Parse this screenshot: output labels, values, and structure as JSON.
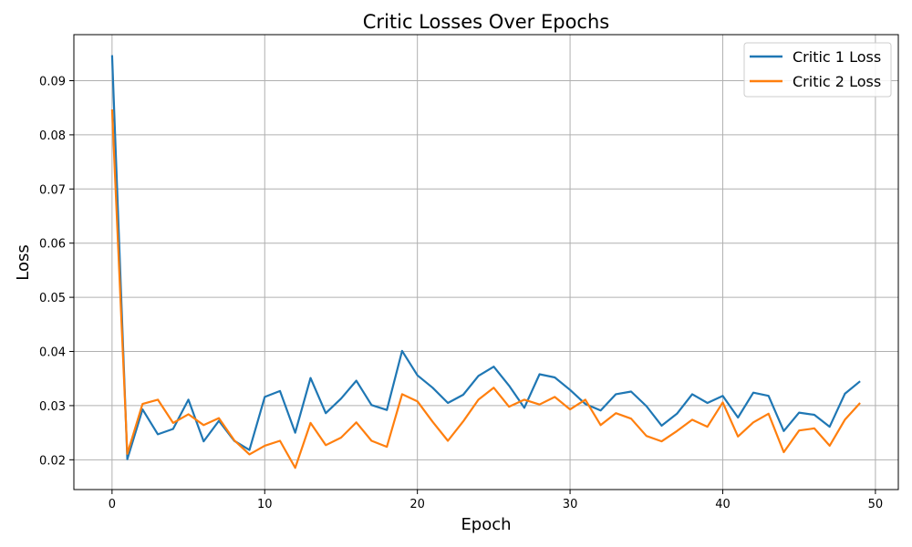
{
  "chart_data": {
    "type": "line",
    "title": "Critic Losses Over Epochs",
    "xlabel": "Epoch",
    "ylabel": "Loss",
    "xlim": [
      -2.5,
      51.5
    ],
    "ylim": [
      0.0145,
      0.0985
    ],
    "xticks": [
      0,
      10,
      20,
      30,
      40,
      50
    ],
    "yticks": [
      0.02,
      0.03,
      0.04,
      0.05,
      0.06,
      0.07,
      0.08,
      0.09
    ],
    "ytick_labels": [
      "0.02",
      "0.03",
      "0.04",
      "0.05",
      "0.06",
      "0.07",
      "0.08",
      "0.09"
    ],
    "grid": true,
    "legend_position": "top-right",
    "x": [
      0,
      1,
      2,
      3,
      4,
      5,
      6,
      7,
      8,
      9,
      10,
      11,
      12,
      13,
      14,
      15,
      16,
      17,
      18,
      19,
      20,
      21,
      22,
      23,
      24,
      25,
      26,
      27,
      28,
      29,
      30,
      31,
      32,
      33,
      34,
      35,
      36,
      37,
      38,
      39,
      40,
      41,
      42,
      43,
      44,
      45,
      46,
      47,
      48,
      49
    ],
    "series": [
      {
        "name": "Critic 1 Loss",
        "color": "#1f77b4",
        "values": [
          0.0947,
          0.0201,
          0.0293,
          0.0247,
          0.0257,
          0.0311,
          0.0234,
          0.0272,
          0.0235,
          0.0218,
          0.0316,
          0.0327,
          0.025,
          0.0351,
          0.0286,
          0.0313,
          0.0346,
          0.0301,
          0.0292,
          0.0401,
          0.0356,
          0.0333,
          0.0305,
          0.032,
          0.0355,
          0.0372,
          0.0337,
          0.0296,
          0.0358,
          0.0352,
          0.0329,
          0.0303,
          0.0291,
          0.0321,
          0.0326,
          0.0299,
          0.0263,
          0.0285,
          0.0321,
          0.0305,
          0.0318,
          0.0278,
          0.0324,
          0.0318,
          0.0253,
          0.0287,
          0.0283,
          0.0261,
          0.0322,
          0.0345
        ]
      },
      {
        "name": "Critic 2 Loss",
        "color": "#ff7f0e",
        "values": [
          0.0847,
          0.0211,
          0.0303,
          0.0311,
          0.0268,
          0.0284,
          0.0264,
          0.0277,
          0.0236,
          0.021,
          0.0226,
          0.0235,
          0.0185,
          0.0268,
          0.0227,
          0.0241,
          0.0269,
          0.0235,
          0.0224,
          0.0321,
          0.0308,
          0.027,
          0.0235,
          0.0271,
          0.0311,
          0.0333,
          0.0298,
          0.0311,
          0.0302,
          0.0316,
          0.0293,
          0.0311,
          0.0264,
          0.0286,
          0.0276,
          0.0244,
          0.0234,
          0.0253,
          0.0274,
          0.0261,
          0.0306,
          0.0243,
          0.0269,
          0.0285,
          0.0214,
          0.0254,
          0.0258,
          0.0226,
          0.0274,
          0.0305
        ]
      }
    ]
  }
}
